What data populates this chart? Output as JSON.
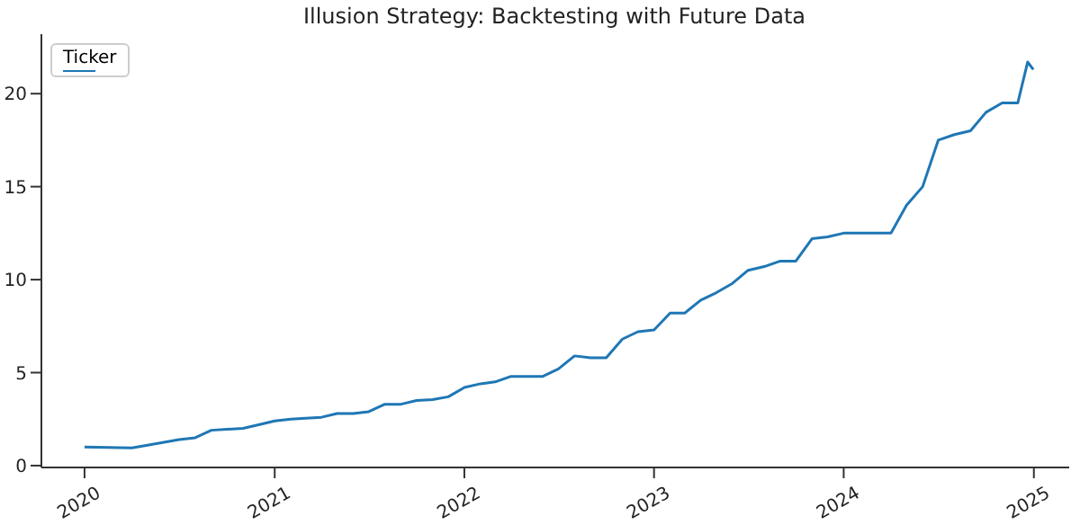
{
  "chart_data": {
    "type": "line",
    "title": "Illusion Strategy: Backtesting with Future Data",
    "legend_title": "Ticker",
    "grid": false,
    "marker": "none",
    "line_style": "solid",
    "x": [
      "2020-01-01",
      "2020-04-01",
      "2020-05-01",
      "2020-07-01",
      "2020-08-01",
      "2020-09-01",
      "2020-10-01",
      "2020-11-01",
      "2020-12-01",
      "2021-01-01",
      "2021-02-01",
      "2021-03-01",
      "2021-04-01",
      "2021-05-01",
      "2021-06-01",
      "2021-07-01",
      "2021-08-01",
      "2021-09-01",
      "2021-10-01",
      "2021-11-01",
      "2021-12-01",
      "2022-01-01",
      "2022-02-01",
      "2022-03-01",
      "2022-04-01",
      "2022-05-01",
      "2022-06-01",
      "2022-07-01",
      "2022-08-01",
      "2022-09-01",
      "2022-10-01",
      "2022-11-01",
      "2022-12-01",
      "2023-01-01",
      "2023-02-01",
      "2023-03-01",
      "2023-04-01",
      "2023-05-01",
      "2023-06-01",
      "2023-07-01",
      "2023-08-01",
      "2023-09-01",
      "2023-10-01",
      "2023-11-01",
      "2023-12-01",
      "2024-01-01",
      "2024-03-01",
      "2024-04-01",
      "2024-05-01",
      "2024-06-01",
      "2024-07-01",
      "2024-08-01",
      "2024-09-01",
      "2024-10-01",
      "2024-11-01",
      "2024-12-01",
      "2024-12-20",
      "2024-12-31"
    ],
    "series": [
      {
        "color": "#1f77b4",
        "values": [
          1.0,
          0.95,
          1.1,
          1.4,
          1.5,
          1.9,
          1.95,
          2.0,
          2.2,
          2.4,
          2.5,
          2.55,
          2.6,
          2.8,
          2.8,
          2.9,
          3.3,
          3.3,
          3.5,
          3.55,
          3.7,
          4.2,
          4.4,
          4.5,
          4.8,
          4.8,
          4.8,
          5.2,
          5.9,
          5.8,
          5.8,
          6.8,
          7.2,
          7.3,
          8.2,
          8.2,
          8.9,
          9.3,
          9.8,
          10.5,
          10.7,
          11.0,
          11.0,
          12.2,
          12.3,
          12.5,
          12.5,
          12.5,
          14.0,
          15.0,
          17.5,
          17.8,
          18.0,
          19.0,
          19.5,
          19.5,
          21.7,
          21.3
        ]
      }
    ],
    "xlim": [
      "2019-10-10",
      "2025-03-10"
    ],
    "xticks": [
      "2020",
      "2021",
      "2022",
      "2023",
      "2024",
      "2025"
    ],
    "ylim": [
      -0.1,
      23.2
    ],
    "yticks": [
      0,
      5,
      10,
      15,
      20
    ]
  }
}
